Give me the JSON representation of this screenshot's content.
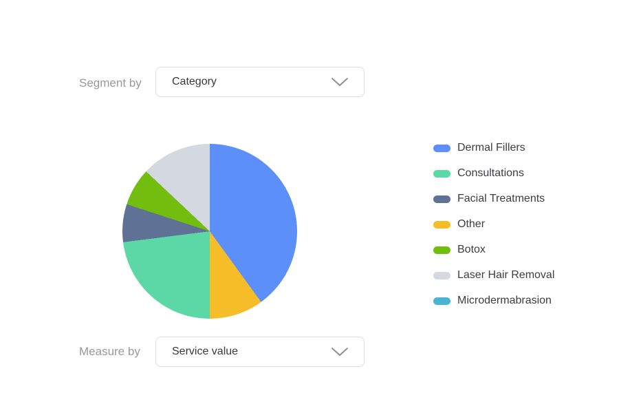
{
  "controls": {
    "segment_by": {
      "label": "Segment by",
      "value": "Category"
    },
    "measure_by": {
      "label": "Measure by",
      "value": "Service value"
    }
  },
  "colors": {
    "background": "#ffffff",
    "control_label": "#96989E",
    "select_border": "#DCDEE2",
    "select_text": "#36383E",
    "legend_text": "#3B3D43",
    "chevron": "#8C8F95"
  },
  "chart_data": {
    "type": "pie",
    "title": "",
    "segment_dimension": "Category",
    "measure": "Service value",
    "legend_position": "right",
    "data_labels_shown": false,
    "start_angle_deg": 0,
    "slices": [
      {
        "label": "Dermal Fillers",
        "color": "#5C8FF8",
        "percent": 40
      },
      {
        "label": "Consultations",
        "color": "#5BD8A6",
        "percent": 23
      },
      {
        "label": "Facial Treatments",
        "color": "#5F7296",
        "percent": 7
      },
      {
        "label": "Other",
        "color": "#F5BD27",
        "percent": 10
      },
      {
        "label": "Botox",
        "color": "#73BD0E",
        "percent": 7
      },
      {
        "label": "Laser Hair Removal",
        "color": "#D3D8E1",
        "percent": 13
      },
      {
        "label": "Microdermabrasion",
        "color": "#4AB5D2",
        "percent": 0
      }
    ],
    "pie_clockwise_order": [
      "Dermal Fillers",
      "Other",
      "Consultations",
      "Facial Treatments",
      "Botox",
      "Laser Hair Removal",
      "Microdermabrasion"
    ]
  }
}
